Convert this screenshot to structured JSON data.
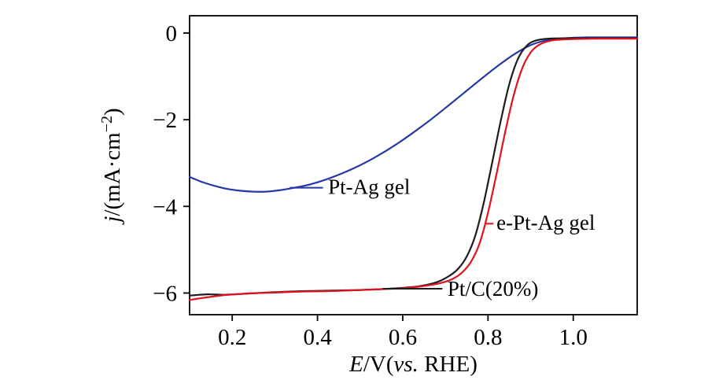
{
  "figure": {
    "background": "#ffffff",
    "frame_color": "#000000"
  },
  "chart_data": {
    "type": "line",
    "title": "",
    "xlabel": "E/V(vs. RHE)",
    "ylabel": "j/(mA·cm−2)",
    "xlabel_parts": [
      {
        "t": "E",
        "i": true
      },
      {
        "t": "/V(",
        "i": false
      },
      {
        "t": "vs.",
        "i": true
      },
      {
        "t": " RHE)",
        "i": false
      }
    ],
    "ylabel_parts": [
      {
        "t": "j",
        "i": true
      },
      {
        "t": "/(mA·cm",
        "i": false
      },
      {
        "t": "−2",
        "i": false,
        "sup": true
      },
      {
        "t": ")",
        "i": false
      }
    ],
    "xlim": [
      0.1,
      1.15
    ],
    "ylim": [
      -6.5,
      0.4
    ],
    "xticks": [
      0.2,
      0.4,
      0.6,
      0.8,
      1.0
    ],
    "xtick_labels": [
      "0.2",
      "0.4",
      "0.6",
      "0.8",
      "1.0"
    ],
    "yticks": [
      0,
      -2,
      -4,
      -6
    ],
    "ytick_labels": [
      "0",
      "−2",
      "−4",
      "−6"
    ],
    "grid": false,
    "legend_position": "inline-annotations",
    "series": [
      {
        "name": "Pt-Ag gel",
        "color": "#2638a6",
        "x": [
          0.1,
          0.13,
          0.16,
          0.19,
          0.22,
          0.25,
          0.28,
          0.31,
          0.34,
          0.38,
          0.42,
          0.46,
          0.5,
          0.54,
          0.58,
          0.62,
          0.66,
          0.7,
          0.74,
          0.78,
          0.82,
          0.86,
          0.9,
          0.94,
          0.98,
          1.03,
          1.08,
          1.15
        ],
        "y": [
          -3.32,
          -3.44,
          -3.53,
          -3.6,
          -3.64,
          -3.66,
          -3.66,
          -3.63,
          -3.58,
          -3.5,
          -3.38,
          -3.23,
          -3.05,
          -2.84,
          -2.6,
          -2.33,
          -2.04,
          -1.73,
          -1.41,
          -1.09,
          -0.78,
          -0.5,
          -0.28,
          -0.16,
          -0.12,
          -0.1,
          -0.1,
          -0.1
        ]
      },
      {
        "name": "Pt/C(20%)",
        "color": "#1c1c1c",
        "x": [
          0.1,
          0.14,
          0.18,
          0.22,
          0.26,
          0.3,
          0.35,
          0.4,
          0.45,
          0.5,
          0.55,
          0.6,
          0.64,
          0.67,
          0.69,
          0.71,
          0.73,
          0.75,
          0.77,
          0.79,
          0.81,
          0.83,
          0.85,
          0.87,
          0.89,
          0.91,
          0.94,
          1.0,
          1.05,
          1.1,
          1.15
        ],
        "y": [
          -6.06,
          -6.03,
          -6.04,
          -6.02,
          -6.0,
          -5.98,
          -5.96,
          -5.95,
          -5.94,
          -5.93,
          -5.91,
          -5.88,
          -5.84,
          -5.78,
          -5.71,
          -5.6,
          -5.44,
          -5.16,
          -4.68,
          -3.92,
          -2.98,
          -2.02,
          -1.18,
          -0.6,
          -0.3,
          -0.18,
          -0.13,
          -0.12,
          -0.12,
          -0.12,
          -0.12
        ]
      },
      {
        "name": "e-Pt-Ag gel",
        "color": "#e1111e",
        "x": [
          0.1,
          0.14,
          0.18,
          0.22,
          0.26,
          0.3,
          0.35,
          0.4,
          0.45,
          0.5,
          0.55,
          0.6,
          0.64,
          0.68,
          0.7,
          0.72,
          0.74,
          0.76,
          0.78,
          0.8,
          0.82,
          0.84,
          0.86,
          0.88,
          0.9,
          0.92,
          0.95,
          1.0,
          1.05,
          1.1,
          1.15
        ],
        "y": [
          -6.16,
          -6.1,
          -6.05,
          -6.02,
          -6.0,
          -5.99,
          -5.97,
          -5.96,
          -5.95,
          -5.93,
          -5.91,
          -5.89,
          -5.85,
          -5.79,
          -5.74,
          -5.66,
          -5.52,
          -5.28,
          -4.86,
          -4.15,
          -3.25,
          -2.3,
          -1.45,
          -0.82,
          -0.45,
          -0.27,
          -0.17,
          -0.14,
          -0.13,
          -0.13,
          -0.13
        ]
      }
    ],
    "annotations": [
      {
        "text": "Pt-Ag gel",
        "x": 0.425,
        "y": -3.55,
        "leader": [
          0.335,
          -3.57,
          0.413,
          -3.57
        ],
        "leader_color": "#2638a6"
      },
      {
        "text": "e-Pt-Ag gel",
        "x": 0.82,
        "y": -4.38,
        "leader": [
          0.793,
          -4.4,
          0.813,
          -4.4
        ],
        "leader_color": "#e1111e"
      },
      {
        "text": "Pt/C(20%)",
        "x": 0.705,
        "y": -5.9,
        "leader": [
          0.553,
          -5.9,
          0.693,
          -5.9
        ],
        "leader_color": "#1c1c1c"
      }
    ]
  }
}
